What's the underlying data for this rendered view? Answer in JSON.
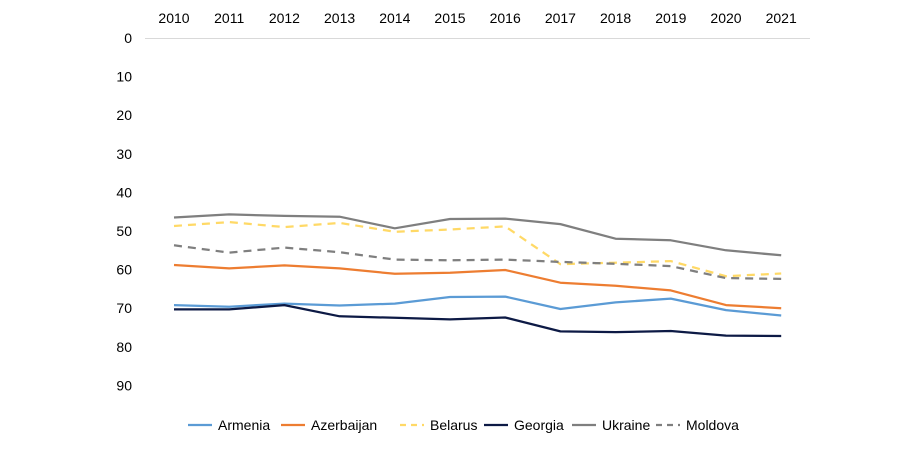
{
  "chart_data": {
    "type": "line",
    "x": [
      "2010",
      "2011",
      "2012",
      "2013",
      "2014",
      "2015",
      "2016",
      "2017",
      "2018",
      "2019",
      "2020",
      "2021"
    ],
    "xaxis_position": "top",
    "y_axis_inverted": true,
    "ylim": [
      0,
      90
    ],
    "yticks": [
      0,
      10,
      20,
      30,
      40,
      50,
      60,
      70,
      80,
      90
    ],
    "grid": false,
    "legend_position": "bottom",
    "series": [
      {
        "name": "Armenia",
        "color": "#5B9BD5",
        "dash": "solid",
        "values": [
          69.2,
          69.6,
          68.8,
          69.3,
          68.8,
          67.1,
          67.0,
          70.2,
          68.5,
          67.5,
          70.5,
          71.9
        ]
      },
      {
        "name": "Azerbaijan",
        "color": "#ED7D31",
        "dash": "solid",
        "values": [
          58.8,
          59.7,
          58.9,
          59.7,
          61.1,
          60.8,
          60.1,
          63.4,
          64.2,
          65.4,
          69.2,
          70.0
        ]
      },
      {
        "name": "Belarus",
        "color": "#FFD966",
        "dash": "dashed",
        "values": [
          48.7,
          47.7,
          49.0,
          47.9,
          50.2,
          49.6,
          48.8,
          58.6,
          58.2,
          57.8,
          61.7,
          61.0
        ]
      },
      {
        "name": "Georgia",
        "color": "#0D1A45",
        "dash": "solid",
        "values": [
          70.3,
          70.3,
          69.2,
          72.1,
          72.5,
          72.9,
          72.4,
          76.0,
          76.2,
          75.9,
          77.1,
          77.2
        ]
      },
      {
        "name": "Ukraine",
        "color": "#7F7F7F",
        "dash": "solid",
        "values": [
          46.5,
          45.7,
          46.1,
          46.3,
          49.3,
          46.9,
          46.8,
          48.2,
          52.0,
          52.4,
          55.0,
          56.3
        ]
      },
      {
        "name": "Moldova",
        "color": "#7F7F7F",
        "dash": "dashed",
        "values": [
          53.7,
          55.6,
          54.3,
          55.5,
          57.4,
          57.6,
          57.4,
          58.0,
          58.5,
          59.1,
          62.2,
          62.4
        ]
      }
    ]
  }
}
